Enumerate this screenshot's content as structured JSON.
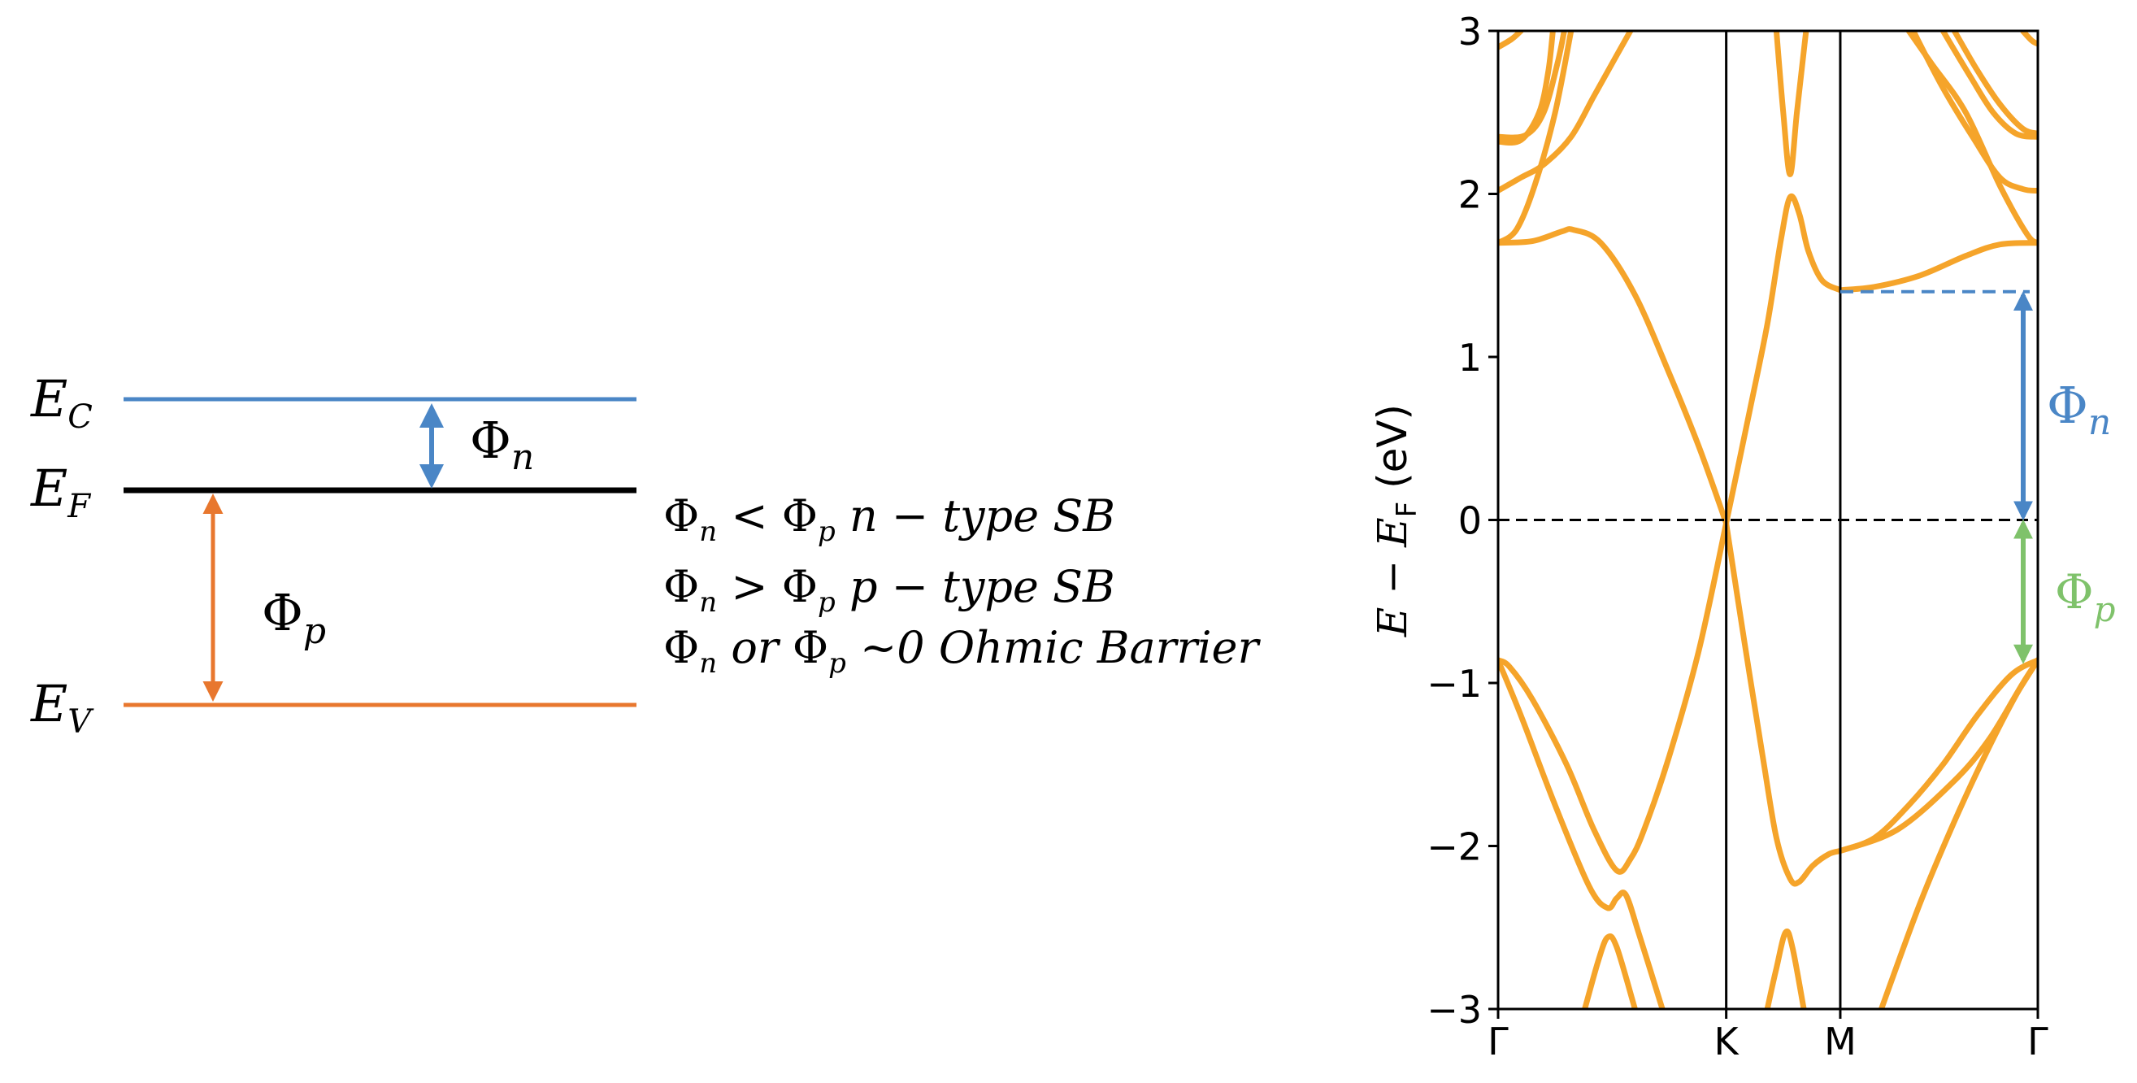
{
  "colors": {
    "conduction": "#4a86c6",
    "fermi": "#000000",
    "valence": "#e8772e",
    "band": "#f5a42a",
    "phi_n_arrow": "#4a86c6",
    "phi_p_arrow": "#7fc26b"
  },
  "left_diagram": {
    "ec": {
      "letter": "E",
      "sub": "C"
    },
    "ef": {
      "letter": "E",
      "sub": "F"
    },
    "ev": {
      "letter": "E",
      "sub": "V"
    },
    "phi_n": {
      "letter": "Φ",
      "sub": "n"
    },
    "phi_p": {
      "letter": "Φ",
      "sub": "p"
    }
  },
  "conditions": [
    {
      "a": "Φ",
      "a_sub": "n",
      "op": " < ",
      "b": "Φ",
      "b_sub": "p",
      "text": " n − type SB"
    },
    {
      "a": "Φ",
      "a_sub": "n",
      "op": " > ",
      "b": "Φ",
      "b_sub": "p",
      "text": " p − type SB"
    },
    {
      "a": "Φ",
      "a_sub": "n",
      "mid": " or ",
      "b": "Φ",
      "b_sub": "p",
      "text": " ~0 Ohmic Barrier"
    }
  ],
  "chart_data": {
    "type": "line",
    "title": "",
    "ylabel": {
      "pre": "E − E",
      "sub": "F",
      "unit": " (eV)"
    },
    "ylim": [
      -3,
      3
    ],
    "yticks": [
      3,
      2,
      1,
      0,
      -1,
      -2,
      -3
    ],
    "ytick_labels": [
      "3",
      "2",
      "1",
      "0",
      "−1",
      "−2",
      "−3"
    ],
    "xticks": [
      {
        "label": "Γ",
        "k": 0
      },
      {
        "label": "K",
        "k": 1
      },
      {
        "label": "M",
        "k": 1.5
      },
      {
        "label": "Γ",
        "k": 2.366
      }
    ],
    "fermi_level": 0,
    "cbm_level": 1.4,
    "vbm_level": -0.88,
    "annotations": {
      "phi_n": {
        "letter": "Φ",
        "sub": "n"
      },
      "phi_p": {
        "letter": "Φ",
        "sub": "p"
      }
    },
    "series": [
      {
        "name": "band-1",
        "points": [
          [
            0,
            -0.86
          ],
          [
            0.05,
            -0.9
          ],
          [
            0.15,
            -1.1
          ],
          [
            0.3,
            -1.5
          ],
          [
            0.42,
            -1.9
          ],
          [
            0.52,
            -2.15
          ],
          [
            0.58,
            -2.08
          ],
          [
            0.64,
            -1.9
          ],
          [
            0.75,
            -1.45
          ],
          [
            0.88,
            -0.8
          ],
          [
            1,
            -0.02
          ]
        ]
      },
      {
        "name": "band-2",
        "points": [
          [
            0,
            -0.86
          ],
          [
            0.1,
            -1.2
          ],
          [
            0.25,
            -1.75
          ],
          [
            0.4,
            -2.25
          ],
          [
            0.48,
            -2.38
          ],
          [
            0.52,
            -2.32
          ],
          [
            0.56,
            -2.3
          ],
          [
            0.62,
            -2.55
          ],
          [
            0.72,
            -3.0
          ]
        ]
      },
      {
        "name": "band-3",
        "points": [
          [
            0.38,
            -3.0
          ],
          [
            0.44,
            -2.7
          ],
          [
            0.48,
            -2.56
          ],
          [
            0.52,
            -2.62
          ],
          [
            0.6,
            -3.0
          ]
        ]
      },
      {
        "name": "band-4",
        "points": [
          [
            0,
            1.7
          ],
          [
            0.15,
            1.71
          ],
          [
            0.28,
            1.77
          ],
          [
            0.33,
            1.78
          ],
          [
            0.45,
            1.7
          ],
          [
            0.6,
            1.38
          ],
          [
            0.75,
            0.9
          ],
          [
            0.88,
            0.45
          ],
          [
            1,
            -0.02
          ]
        ]
      },
      {
        "name": "band-5",
        "points": [
          [
            1,
            -0.02
          ],
          [
            1.1,
            0.65
          ],
          [
            1.18,
            1.2
          ],
          [
            1.24,
            1.72
          ],
          [
            1.28,
            1.98
          ],
          [
            1.32,
            1.88
          ],
          [
            1.36,
            1.65
          ],
          [
            1.42,
            1.47
          ],
          [
            1.5,
            1.41
          ]
        ]
      },
      {
        "name": "band-6",
        "points": [
          [
            1,
            -0.02
          ],
          [
            1.08,
            -0.75
          ],
          [
            1.16,
            -1.45
          ],
          [
            1.22,
            -1.95
          ],
          [
            1.28,
            -2.2
          ],
          [
            1.32,
            -2.22
          ],
          [
            1.38,
            -2.12
          ],
          [
            1.45,
            -2.05
          ],
          [
            1.5,
            -2.03
          ]
        ]
      },
      {
        "name": "band-7",
        "points": [
          [
            1.18,
            -3.0
          ],
          [
            1.22,
            -2.75
          ],
          [
            1.26,
            -2.53
          ],
          [
            1.29,
            -2.62
          ],
          [
            1.34,
            -3.0
          ]
        ]
      },
      {
        "name": "band-8",
        "points": [
          [
            1.22,
            3.0
          ],
          [
            1.25,
            2.5
          ],
          [
            1.28,
            2.12
          ],
          [
            1.31,
            2.5
          ],
          [
            1.35,
            3.0
          ]
        ]
      },
      {
        "name": "band-9",
        "points": [
          [
            1.5,
            1.41
          ],
          [
            1.65,
            1.43
          ],
          [
            1.85,
            1.5
          ],
          [
            2.05,
            1.62
          ],
          [
            2.2,
            1.69
          ],
          [
            2.366,
            1.7
          ]
        ]
      },
      {
        "name": "band-10",
        "points": [
          [
            1.5,
            -2.03
          ],
          [
            1.65,
            -1.95
          ],
          [
            1.8,
            -1.75
          ],
          [
            1.95,
            -1.5
          ],
          [
            2.1,
            -1.2
          ],
          [
            2.25,
            -0.95
          ],
          [
            2.366,
            -0.86
          ]
        ]
      },
      {
        "name": "band-11",
        "points": [
          [
            1.5,
            -2.03
          ],
          [
            1.75,
            -1.9
          ],
          [
            2.0,
            -1.6
          ],
          [
            2.15,
            -1.35
          ],
          [
            2.28,
            -1.05
          ],
          [
            2.366,
            -0.86
          ]
        ]
      },
      {
        "name": "band-12",
        "points": [
          [
            1.68,
            -3.0
          ],
          [
            1.85,
            -2.35
          ],
          [
            2.0,
            -1.85
          ],
          [
            2.15,
            -1.4
          ],
          [
            2.28,
            -1.05
          ],
          [
            2.366,
            -0.86
          ]
        ]
      },
      {
        "name": "band-13",
        "points": [
          [
            0,
            2.02
          ],
          [
            0.1,
            2.1
          ],
          [
            0.2,
            2.18
          ],
          [
            0.32,
            2.35
          ],
          [
            0.42,
            2.6
          ],
          [
            0.52,
            2.85
          ],
          [
            0.58,
            3.0
          ]
        ]
      },
      {
        "name": "band-14",
        "points": [
          [
            0,
            2.35
          ],
          [
            0.12,
            2.36
          ],
          [
            0.2,
            2.5
          ],
          [
            0.26,
            2.8
          ],
          [
            0.29,
            3.0
          ]
        ]
      },
      {
        "name": "band-15",
        "points": [
          [
            0,
            2.32
          ],
          [
            0.1,
            2.33
          ],
          [
            0.18,
            2.5
          ],
          [
            0.22,
            2.75
          ],
          [
            0.24,
            3.0
          ]
        ]
      },
      {
        "name": "band-16",
        "points": [
          [
            0,
            2.9
          ],
          [
            0.06,
            2.95
          ],
          [
            0.1,
            3.0
          ]
        ]
      },
      {
        "name": "band-17",
        "points": [
          [
            0,
            1.7
          ],
          [
            0.08,
            1.78
          ],
          [
            0.16,
            2.05
          ],
          [
            0.25,
            2.5
          ],
          [
            0.32,
            3.0
          ]
        ]
      },
      {
        "name": "band-18",
        "points": [
          [
            1.82,
            3.0
          ],
          [
            1.95,
            2.65
          ],
          [
            2.08,
            2.35
          ],
          [
            2.2,
            2.1
          ],
          [
            2.3,
            2.03
          ],
          [
            2.366,
            2.02
          ]
        ]
      },
      {
        "name": "band-19",
        "points": [
          [
            1.95,
            3.0
          ],
          [
            2.07,
            2.72
          ],
          [
            2.17,
            2.5
          ],
          [
            2.27,
            2.37
          ],
          [
            2.366,
            2.35
          ]
        ]
      },
      {
        "name": "band-20",
        "points": [
          [
            2.0,
            3.0
          ],
          [
            2.1,
            2.76
          ],
          [
            2.2,
            2.55
          ],
          [
            2.3,
            2.4
          ],
          [
            2.366,
            2.37
          ]
        ]
      },
      {
        "name": "band-21",
        "points": [
          [
            1.8,
            3.0
          ],
          [
            1.9,
            2.8
          ],
          [
            2.05,
            2.5
          ],
          [
            2.2,
            2.05
          ],
          [
            2.32,
            1.75
          ],
          [
            2.366,
            1.7
          ]
        ]
      },
      {
        "name": "band-22",
        "points": [
          [
            2.3,
            3.0
          ],
          [
            2.34,
            2.94
          ],
          [
            2.366,
            2.92
          ]
        ]
      }
    ]
  }
}
